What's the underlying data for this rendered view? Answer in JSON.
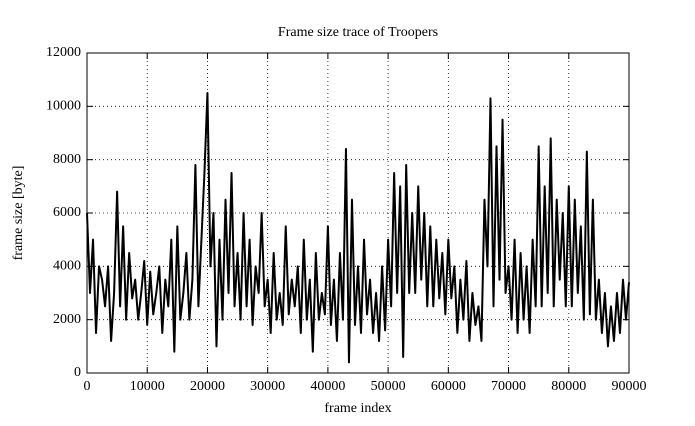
{
  "chart_data": {
    "type": "line",
    "title": "Frame size trace of Troopers",
    "xlabel": "frame index",
    "ylabel": "frame size [byte]",
    "color": "#000000",
    "grid": true,
    "xlim": [
      0,
      90000
    ],
    "ylim": [
      0,
      12000
    ],
    "xticks": [
      0,
      10000,
      20000,
      30000,
      40000,
      50000,
      60000,
      70000,
      80000,
      90000
    ],
    "yticks": [
      0,
      2000,
      4000,
      6000,
      8000,
      10000,
      12000
    ],
    "x": [
      0,
      500,
      1000,
      1500,
      2000,
      2500,
      3000,
      3500,
      4000,
      4500,
      5000,
      5500,
      6000,
      6500,
      7000,
      7500,
      8000,
      8500,
      9000,
      9500,
      10000,
      10500,
      11000,
      11500,
      12000,
      12500,
      13000,
      13500,
      14000,
      14500,
      15000,
      15500,
      16000,
      16500,
      17000,
      17500,
      18000,
      18500,
      19000,
      19500,
      20000,
      20500,
      21000,
      21500,
      22000,
      22500,
      23000,
      23500,
      24000,
      24500,
      25000,
      25500,
      26000,
      26500,
      27000,
      27500,
      28000,
      28500,
      29000,
      29500,
      30000,
      30500,
      31000,
      31500,
      32000,
      32500,
      33000,
      33500,
      34000,
      34500,
      35000,
      35500,
      36000,
      36500,
      37000,
      37500,
      38000,
      38500,
      39000,
      39500,
      40000,
      40500,
      41000,
      41500,
      42000,
      42500,
      43000,
      43500,
      44000,
      44500,
      45000,
      45500,
      46000,
      46500,
      47000,
      47500,
      48000,
      48500,
      49000,
      49500,
      50000,
      50500,
      51000,
      51500,
      52000,
      52500,
      53000,
      53500,
      54000,
      54500,
      55000,
      55500,
      56000,
      56500,
      57000,
      57500,
      58000,
      58500,
      59000,
      59500,
      60000,
      60500,
      61000,
      61500,
      62000,
      62500,
      63000,
      63500,
      64000,
      64500,
      65000,
      65500,
      66000,
      66500,
      67000,
      67500,
      68000,
      68500,
      69000,
      69500,
      70000,
      70500,
      71000,
      71500,
      72000,
      72500,
      73000,
      73500,
      74000,
      74500,
      75000,
      75500,
      76000,
      76500,
      77000,
      77500,
      78000,
      78500,
      79000,
      79500,
      80000,
      80500,
      81000,
      81500,
      82000,
      82500,
      83000,
      83500,
      84000,
      84500,
      85000,
      85500,
      86000,
      86500,
      87000,
      87500,
      88000,
      88500,
      89000,
      89500,
      90000
    ],
    "values": [
      6000,
      3000,
      5000,
      1500,
      4000,
      3500,
      2500,
      4000,
      1200,
      3000,
      6800,
      2500,
      5500,
      2000,
      4500,
      2800,
      3500,
      2000,
      3000,
      4200,
      1800,
      3800,
      2200,
      3000,
      4000,
      1500,
      3500,
      2500,
      5000,
      800,
      5500,
      2000,
      3000,
      4500,
      2000,
      3500,
      7800,
      2500,
      5000,
      7500,
      10500,
      4000,
      6000,
      1000,
      5000,
      2000,
      6500,
      3000,
      7500,
      2500,
      4500,
      2000,
      6000,
      2500,
      5000,
      1800,
      4000,
      3000,
      6000,
      2500,
      3500,
      1500,
      4500,
      2000,
      3000,
      1800,
      5500,
      2200,
      3500,
      2500,
      4000,
      1500,
      5000,
      2000,
      3500,
      800,
      4500,
      2000,
      3000,
      2200,
      5500,
      1800,
      3500,
      1200,
      4500,
      2000,
      8400,
      400,
      6500,
      1800,
      4000,
      1500,
      5000,
      2200,
      3500,
      1500,
      3000,
      1200,
      4000,
      1600,
      5000,
      2500,
      7500,
      3000,
      7000,
      600,
      7800,
      3000,
      6000,
      3000,
      7000,
      3500,
      6000,
      2500,
      5500,
      2500,
      5000,
      2800,
      4500,
      2200,
      5000,
      2800,
      4000,
      1500,
      3500,
      2000,
      4200,
      1200,
      3000,
      1800,
      2500,
      1200,
      6500,
      4000,
      10300,
      2500,
      8500,
      3500,
      9500,
      3000,
      4000,
      2000,
      5000,
      1500,
      4500,
      2000,
      4000,
      1500,
      5000,
      2500,
      8500,
      2500,
      7000,
      3000,
      8800,
      2500,
      6500,
      3500,
      6000,
      2500,
      7000,
      2500,
      6500,
      3000,
      5500,
      2000,
      8300,
      2200,
      6500,
      2000,
      3500,
      1500,
      3000,
      1000,
      2500,
      1200,
      3000,
      1500,
      3500,
      2000,
      3400
    ]
  }
}
